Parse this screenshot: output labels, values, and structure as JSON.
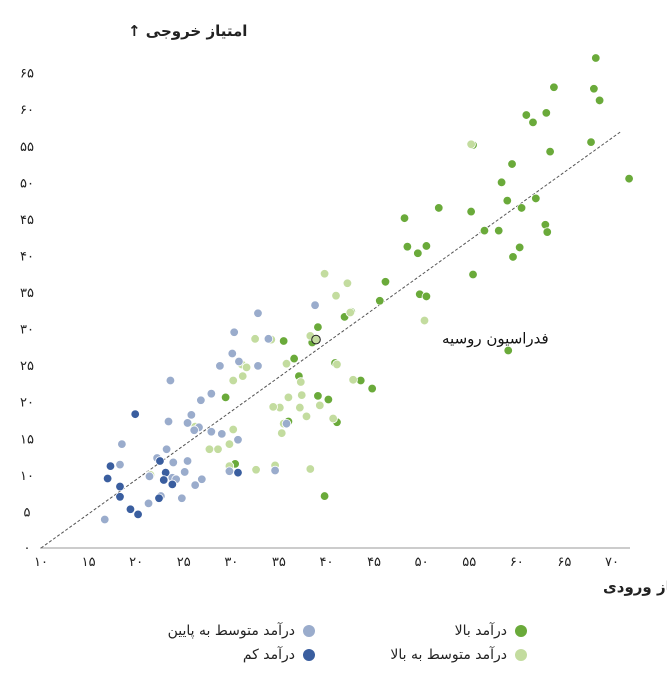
{
  "chart_data": {
    "type": "scatter",
    "ylabel": "امتیاز خروجی ↑",
    "xlabel": "← امتیاز ورودی",
    "xlim": [
      10,
      72
    ],
    "ylim": [
      0,
      67
    ],
    "xticks": [
      10,
      15,
      20,
      25,
      30,
      35,
      40,
      45,
      50,
      55,
      60,
      65,
      70
    ],
    "yticks": [
      5,
      10,
      15,
      20,
      25,
      30,
      35,
      40,
      45,
      50,
      55,
      60,
      65
    ],
    "xtick_labels": [
      "۱۰",
      "۱۵",
      "۲۰",
      "۲۵",
      "۳۰",
      "۳۵",
      "۴۰",
      "۴۵",
      "۵۰",
      "۵۵",
      "۶۰",
      "۶۵",
      "۷۰"
    ],
    "ytick_labels": [
      "۵",
      "۱۰",
      "۱۵",
      "۲۰",
      "۲۵",
      "۳۰",
      "۳۵",
      "۴۰",
      "۴۵",
      "۵۰",
      "۵۵",
      "۶۰",
      "۶۵"
    ],
    "zero_label": "۰",
    "trendline": {
      "x": [
        10,
        71
      ],
      "y": [
        0,
        57
      ]
    },
    "annotation": {
      "label": "فدراسیون روسیه",
      "x": 38.9,
      "y": 28.5
    },
    "grid": false,
    "legend_position": "bottom",
    "series": [
      {
        "name": "درآمد بالا",
        "color": "#6aaa3a",
        "points": [
          [
            68.3,
            67
          ],
          [
            63.9,
            63
          ],
          [
            68.1,
            62.8
          ],
          [
            68.7,
            61.2
          ],
          [
            61,
            59.2
          ],
          [
            63.1,
            59.5
          ],
          [
            61.7,
            58.2
          ],
          [
            55.4,
            55.1
          ],
          [
            67.8,
            55.5
          ],
          [
            63.5,
            54.2
          ],
          [
            59.5,
            52.5
          ],
          [
            71.8,
            50.5
          ],
          [
            58.4,
            50
          ],
          [
            59,
            47.5
          ],
          [
            62,
            47.8
          ],
          [
            60.5,
            46.5
          ],
          [
            51.8,
            46.5
          ],
          [
            55.2,
            46
          ],
          [
            48.2,
            45.1
          ],
          [
            63,
            44.2
          ],
          [
            56.6,
            43.4
          ],
          [
            58.1,
            43.4
          ],
          [
            63.2,
            43.2
          ],
          [
            48.5,
            41.2
          ],
          [
            50.5,
            41.3
          ],
          [
            60.3,
            41.1
          ],
          [
            49.6,
            40.3
          ],
          [
            59.6,
            39.8
          ],
          [
            55.4,
            37.4
          ],
          [
            46.2,
            36.4
          ],
          [
            49.8,
            34.7
          ],
          [
            50.5,
            34.4
          ],
          [
            45.6,
            33.8
          ],
          [
            42.6,
            32.3
          ],
          [
            41.9,
            31.6
          ],
          [
            39.1,
            30.2
          ],
          [
            35.5,
            28.3
          ],
          [
            38.5,
            28.1
          ],
          [
            59.1,
            27
          ],
          [
            36.6,
            25.9
          ],
          [
            40.9,
            25.3
          ],
          [
            43.6,
            22.9
          ],
          [
            37.1,
            23.5
          ],
          [
            29.4,
            20.6
          ],
          [
            39.1,
            20.8
          ],
          [
            40.2,
            20.3
          ],
          [
            44.8,
            21.8
          ],
          [
            41.1,
            17.2
          ],
          [
            36,
            17.3
          ],
          [
            30.4,
            11.5
          ],
          [
            39.8,
            7.1
          ]
        ]
      },
      {
        "name": "درآمد متوسط به بالا",
        "color": "#c3dc9f",
        "points": [
          [
            55.2,
            55.2
          ],
          [
            39.8,
            37.5
          ],
          [
            42.2,
            36.2
          ],
          [
            41,
            34.5
          ],
          [
            42.5,
            32.2
          ],
          [
            50.3,
            31.1
          ],
          [
            38.3,
            29
          ],
          [
            32.5,
            28.6
          ],
          [
            34.2,
            28.5
          ],
          [
            31.1,
            25.1
          ],
          [
            31.6,
            24.7
          ],
          [
            31.2,
            23.5
          ],
          [
            37.3,
            22.7
          ],
          [
            41.1,
            25.1
          ],
          [
            30.2,
            22.9
          ],
          [
            42.8,
            23
          ],
          [
            35.8,
            25.2
          ],
          [
            37.4,
            20.9
          ],
          [
            36,
            20.6
          ],
          [
            35.1,
            19.2
          ],
          [
            39.3,
            19.5
          ],
          [
            37.2,
            19.2
          ],
          [
            37.9,
            18
          ],
          [
            34.4,
            19.3
          ],
          [
            40.7,
            17.7
          ],
          [
            35.5,
            17
          ],
          [
            35.3,
            15.7
          ],
          [
            30.2,
            16.2
          ],
          [
            29.8,
            14.2
          ],
          [
            28.6,
            13.5
          ],
          [
            27.7,
            13.5
          ],
          [
            29.8,
            11.2
          ],
          [
            32.6,
            10.7
          ],
          [
            34.6,
            11.3
          ],
          [
            38.3,
            10.8
          ],
          [
            26.2,
            16.6
          ],
          [
            21.5,
            10
          ]
        ]
      },
      {
        "name": "درآمد متوسط به پایین",
        "color": "#9aaccc",
        "points": [
          [
            38.8,
            33.2
          ],
          [
            32.8,
            32.1
          ],
          [
            30.3,
            29.5
          ],
          [
            33.9,
            28.6
          ],
          [
            30.1,
            26.6
          ],
          [
            30.8,
            25.5
          ],
          [
            28.8,
            24.9
          ],
          [
            32.8,
            24.9
          ],
          [
            23.6,
            22.9
          ],
          [
            27.9,
            21.1
          ],
          [
            26.8,
            20.2
          ],
          [
            25.8,
            18.2
          ],
          [
            23.4,
            17.3
          ],
          [
            25.4,
            17.1
          ],
          [
            26.6,
            16.5
          ],
          [
            27.9,
            15.9
          ],
          [
            26.1,
            16.1
          ],
          [
            29,
            15.6
          ],
          [
            30.7,
            14.8
          ],
          [
            23.2,
            13.5
          ],
          [
            18.5,
            14.2
          ],
          [
            22.2,
            12.3
          ],
          [
            23.9,
            11.7
          ],
          [
            25.4,
            11.9
          ],
          [
            34.6,
            10.6
          ],
          [
            35.8,
            17
          ],
          [
            29.8,
            10.5
          ],
          [
            25.1,
            10.4
          ],
          [
            26.9,
            9.4
          ],
          [
            23.8,
            9.6
          ],
          [
            24.2,
            9.4
          ],
          [
            21.4,
            9.8
          ],
          [
            26.2,
            8.6
          ],
          [
            24.8,
            6.8
          ],
          [
            22.6,
            7.1
          ],
          [
            21.3,
            6.1
          ],
          [
            16.7,
            3.9
          ],
          [
            18.3,
            11.4
          ]
        ]
      },
      {
        "name": "درآمد کم",
        "color": "#3a5e9f",
        "points": [
          [
            19.9,
            18.3
          ],
          [
            22.5,
            11.9
          ],
          [
            17.3,
            11.2
          ],
          [
            23.1,
            10.3
          ],
          [
            30.7,
            10.3
          ],
          [
            17,
            9.5
          ],
          [
            22.9,
            9.3
          ],
          [
            23.8,
            8.7
          ],
          [
            18.3,
            8.4
          ],
          [
            18.3,
            7
          ],
          [
            22.4,
            6.8
          ],
          [
            19.4,
            5.3
          ],
          [
            20.2,
            4.6
          ]
        ]
      }
    ]
  },
  "legend": {
    "items": [
      {
        "label": "درآمد متوسط به پایین",
        "color": "#9aaccc"
      },
      {
        "label": "درآمد کم",
        "color": "#3a5e9f"
      },
      {
        "label": "درآمد بالا",
        "color": "#6aaa3a"
      },
      {
        "label": "درآمد متوسط به بالا",
        "color": "#c3dc9f"
      }
    ]
  }
}
